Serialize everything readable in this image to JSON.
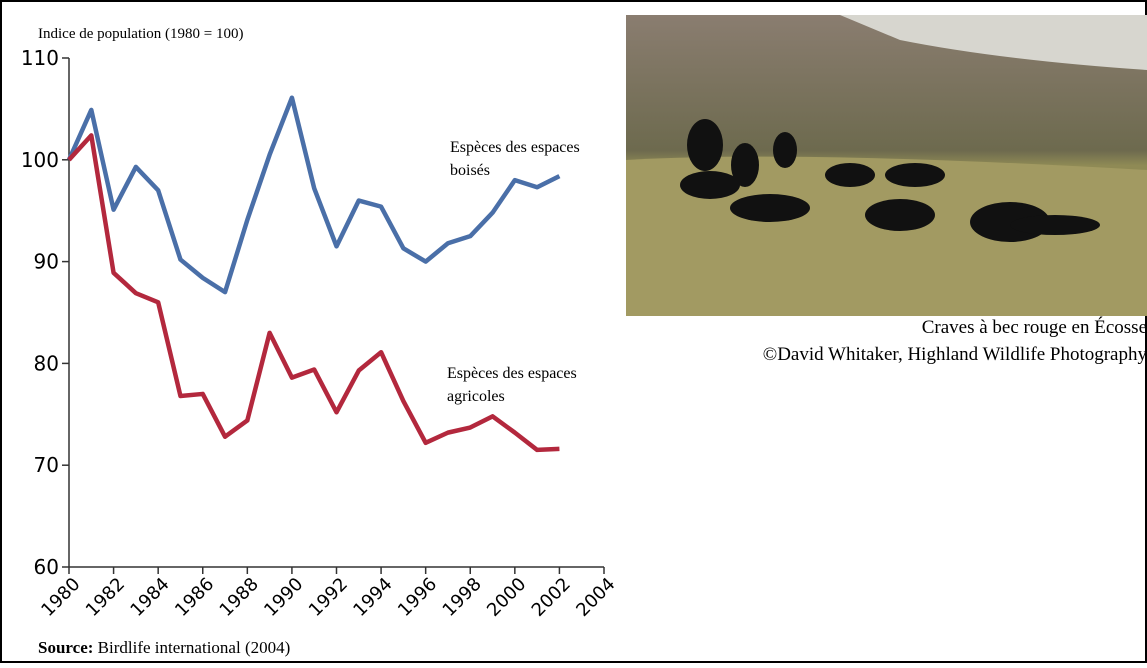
{
  "chart_data": {
    "type": "line",
    "y_axis_label": "Indice de population (1980 = 100)",
    "x": [
      1980,
      1981,
      1982,
      1983,
      1984,
      1985,
      1986,
      1987,
      1988,
      1989,
      1990,
      1991,
      1992,
      1993,
      1994,
      1995,
      1996,
      1997,
      1998,
      1999,
      2000,
      2001,
      2002
    ],
    "series": [
      {
        "label": [
          "Espèces des espaces",
          "boisés"
        ],
        "color": "#4a6fa8",
        "values": [
          100,
          104.9,
          95.1,
          99.3,
          97,
          90.2,
          88.4,
          87,
          94.1,
          100.5,
          106.1,
          97.2,
          91.5,
          96,
          95.4,
          91.3,
          90,
          91.8,
          92.5,
          94.8,
          98,
          97.3,
          98.4
        ]
      },
      {
        "label": [
          "Espèces des espaces",
          "agricoles"
        ],
        "color": "#b3283d",
        "values": [
          100,
          102.4,
          88.9,
          86.9,
          86,
          76.8,
          77,
          72.8,
          74.4,
          83,
          78.6,
          79.4,
          75.2,
          79.3,
          81.1,
          76.3,
          72.2,
          73.2,
          73.7,
          74.8,
          73.2,
          71.5,
          71.6
        ]
      }
    ],
    "xlim": [
      1980,
      2004
    ],
    "xticks": [
      1980,
      1982,
      1984,
      1986,
      1988,
      1990,
      1992,
      1994,
      1996,
      1998,
      2000,
      2002,
      2004
    ],
    "ylim": [
      60,
      110
    ],
    "yticks": [
      60,
      70,
      80,
      90,
      100,
      110
    ],
    "source_label": "Source:",
    "source": "Birdlife international (2004)"
  },
  "photo": {
    "caption": "Craves à bec rouge en Écosse",
    "credit": "©David Whitaker, Highland Wildlife Photography"
  }
}
